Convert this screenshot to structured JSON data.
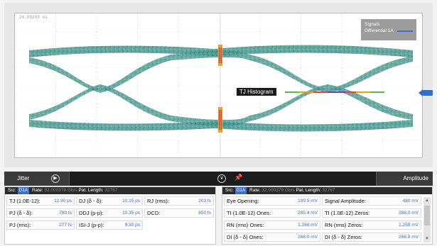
{
  "scope": {
    "timestamp": "24.09289 ns",
    "legend_title": "Signals",
    "legend_series": "Differential 1A",
    "legend_color": "#3b6fd1",
    "histogram_label": "TJ Histogram",
    "marker_icon": "channel-marker-icon"
  },
  "toolbar": {
    "left_tab": "Jitter",
    "right_tab": "Amplitude",
    "next_icon": "arrow-right-icon",
    "prev_icon": "arrow-left-icon",
    "collapse_icon": "chevron-down-icon",
    "pin_icon": "pin-icon"
  },
  "jitter_panel": {
    "src_label": "Src:",
    "src_badge": "D1A",
    "rate_label": "Rate:",
    "rate_value": "32.000379 Gb/s",
    "pat_label": "Pat. Length:",
    "pat_value": "32767",
    "rows": [
      [
        {
          "label": "TJ (1.0E-12):",
          "value": "12.90 ps"
        },
        {
          "label": "DJ (δ - δ):",
          "value": "10.15 ps"
        },
        {
          "label": "RJ (rms):",
          "value": "203 fs"
        }
      ],
      [
        {
          "label": "PJ (δ - δ):",
          "value": "780 fs"
        },
        {
          "label": "DDJ (p-p):",
          "value": "10.35 ps"
        },
        {
          "label": "DCD:",
          "value": "850 fs"
        }
      ],
      [
        {
          "label": "PJ (rms):",
          "value": "277 fs"
        },
        {
          "label": "ISI-J (p-p):",
          "value": "9.30 ps"
        }
      ]
    ]
  },
  "amplitude_panel": {
    "src_label": "Src:",
    "src_badge": "D1A",
    "rate_label": "Rate:",
    "rate_value": "32.000379 Gb/s",
    "pat_label": "Pat. Length:",
    "pat_value": "32767",
    "rows": [
      [
        {
          "label": "Eye Opening:",
          "value": "199.5 mV"
        },
        {
          "label": "Signal Amplitude:",
          "value": "480 mV"
        }
      ],
      [
        {
          "label": "TI (1.0E-12) Ones:",
          "value": "285.4 mV"
        },
        {
          "label": "TI (1.0E-12) Zeros:",
          "value": "288.0 mV"
        }
      ],
      [
        {
          "label": "RN (rms) Ones:",
          "value": "1.266 mV"
        },
        {
          "label": "RN (rms) Zeros:",
          "value": "1.258 mV"
        }
      ],
      [
        {
          "label": "DI (δ - δ) Ones:",
          "value": "268.0 mV"
        },
        {
          "label": "DI (δ - δ) Zeros:",
          "value": "268.8 mV"
        }
      ]
    ]
  }
}
